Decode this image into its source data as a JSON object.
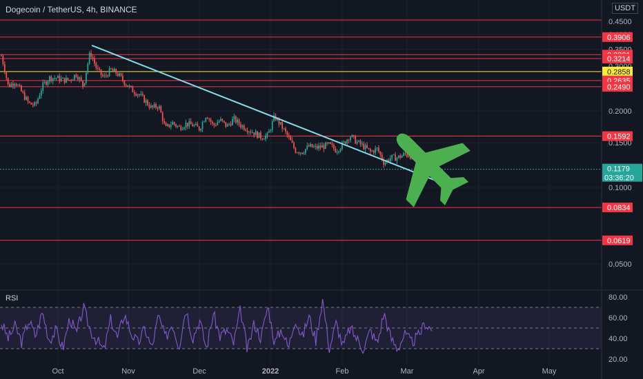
{
  "header": {
    "title": "Dogecoin / TetherUS, 4h, BINANCE",
    "currency": "USDT"
  },
  "rsi": {
    "label": "RSI",
    "levels": [
      "80.00",
      "60.00",
      "40.00",
      "20.00"
    ],
    "level_values": [
      80,
      60,
      40,
      20
    ],
    "bands": [
      70,
      50,
      30
    ]
  },
  "chart_data": {
    "type": "candlestick",
    "symbol": "Dogecoin / TetherUS",
    "interval": "4h",
    "exchange": "BINANCE",
    "y_scale": "log",
    "price_axis_labels": [
      "0.4500",
      "0.4000",
      "0.3500",
      "0.3000",
      "0.2000",
      "0.1500",
      "0.1000",
      "0.0500"
    ],
    "price_axis_values": [
      0.45,
      0.4,
      0.35,
      0.3,
      0.2,
      0.15,
      0.1,
      0.05
    ],
    "time_axis_labels": [
      "Oct",
      "Nov",
      "Dec",
      "2022",
      "Feb",
      "Mar",
      "Apr",
      "May"
    ],
    "horizontal_levels": [
      {
        "label": "0.4560",
        "value": 0.456,
        "color": "#f23645"
      },
      {
        "label": "0.3906",
        "value": 0.3906,
        "color": "#f23645"
      },
      {
        "label": "0.3331",
        "value": 0.3331,
        "color": "#f23645"
      },
      {
        "label": "0.3214",
        "value": 0.3214,
        "color": "#f23645"
      },
      {
        "label": "0.2858",
        "value": 0.2858,
        "color": "#ffeb3b"
      },
      {
        "label": "0.2635",
        "value": 0.2635,
        "color": "#f23645"
      },
      {
        "label": "0.2490",
        "value": 0.249,
        "color": "#f23645"
      },
      {
        "label": "0.1592",
        "value": 0.1592,
        "color": "#f23645"
      },
      {
        "label": "0.0834",
        "value": 0.0834,
        "color": "#f23645"
      },
      {
        "label": "0.0619",
        "value": 0.0619,
        "color": "#f23645"
      }
    ],
    "current_price": {
      "label": "0.1179",
      "value": 0.1179,
      "countdown": "03:36:20",
      "color": "#26a69a"
    },
    "trendline": {
      "color": "#80deea",
      "from": [
        0.093,
        0.362
      ],
      "to": [
        0.424,
        0.102
      ]
    },
    "price_path": [
      0.33,
      0.25,
      0.262,
      0.236,
      0.214,
      0.21,
      0.25,
      0.27,
      0.27,
      0.265,
      0.265,
      0.28,
      0.25,
      0.34,
      0.29,
      0.27,
      0.29,
      0.28,
      0.26,
      0.243,
      0.234,
      0.22,
      0.205,
      0.21,
      0.17,
      0.18,
      0.172,
      0.178,
      0.176,
      0.17,
      0.194,
      0.175,
      0.184,
      0.174,
      0.186,
      0.176,
      0.17,
      0.164,
      0.158,
      0.16,
      0.19,
      0.174,
      0.157,
      0.14,
      0.138,
      0.145,
      0.143,
      0.145,
      0.147,
      0.14,
      0.148,
      0.16,
      0.151,
      0.145,
      0.138,
      0.142,
      0.125,
      0.131,
      0.131,
      0.135,
      0.133,
      0.124,
      0.12,
      0.1179
    ],
    "rsi_path": [
      55,
      40,
      52,
      36,
      58,
      42,
      66,
      38,
      48,
      30,
      60,
      44,
      70,
      48,
      38,
      28,
      58,
      40,
      64,
      45,
      35,
      50,
      30,
      62,
      40,
      55,
      32,
      70,
      40,
      58,
      30,
      64,
      42,
      48,
      35,
      68,
      28,
      55,
      40,
      72,
      35,
      50,
      30,
      60,
      40,
      62,
      38,
      78,
      30,
      55,
      32,
      50,
      40,
      30,
      48,
      35,
      65,
      40,
      30,
      44,
      36,
      42,
      55,
      48
    ],
    "annotation": "airplane-icon"
  }
}
